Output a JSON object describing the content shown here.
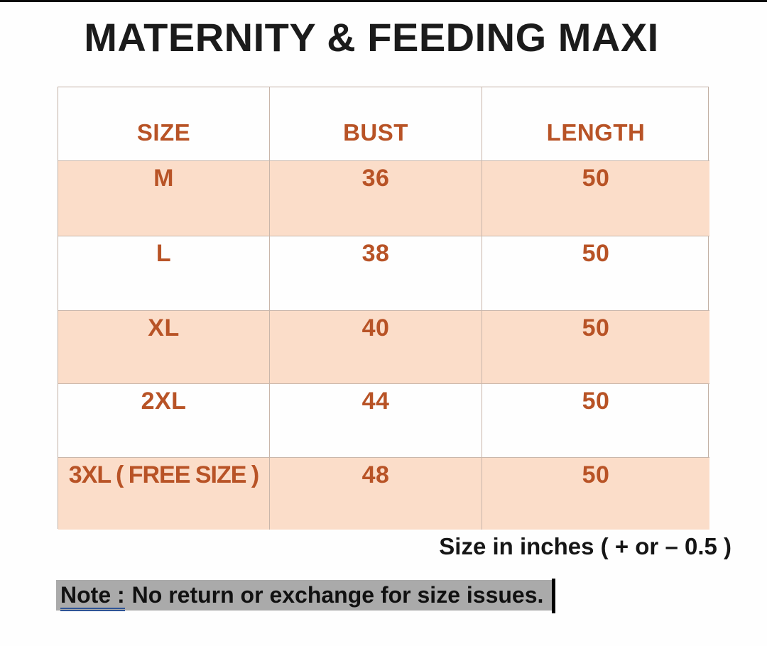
{
  "title": "MATERNITY & FEEDING MAXI",
  "chart_data": {
    "type": "table",
    "title": "MATERNITY & FEEDING MAXI",
    "columns": [
      "SIZE",
      "BUST",
      "LENGTH"
    ],
    "rows": [
      [
        "M",
        "36",
        "50"
      ],
      [
        "L",
        "38",
        "50"
      ],
      [
        "XL",
        "40",
        "50"
      ],
      [
        "2XL",
        "44",
        "50"
      ],
      [
        "3XL ( FREE SIZE )",
        "48",
        "50"
      ]
    ],
    "units_note": "Size in inches ( + or  – 0.5 )",
    "footnote": "Note : No return or exchange for size issues.",
    "layout": {
      "header_row_background": "#ffffff",
      "striped_row_background": "#fbdcc8",
      "striped_rows": [
        0,
        2,
        4
      ],
      "border_color": "#bfa494",
      "text_color": "#c05722"
    }
  },
  "table": {
    "headers": [
      "SIZE",
      "BUST",
      "LENGTH"
    ],
    "rows": [
      [
        "M",
        "36",
        "50"
      ],
      [
        "L",
        "38",
        "50"
      ],
      [
        "XL",
        "40",
        "50"
      ],
      [
        "2XL",
        "44",
        "50"
      ],
      [
        "3XL ( FREE SIZE )",
        "48",
        "50"
      ]
    ]
  },
  "caption": {
    "text": "Size in inches ( + or  – 0.5 )"
  },
  "note": {
    "label": "Note :",
    "text": "No return or exchange for size issues."
  },
  "colors": {
    "accent_orange": "#c05722",
    "row_peach": "#fbdcc8",
    "table_border": "#bfa494",
    "note_highlight": "#aaaaaa",
    "note_underline_blue": "#2f5496",
    "title_black": "#1b1b1b"
  }
}
